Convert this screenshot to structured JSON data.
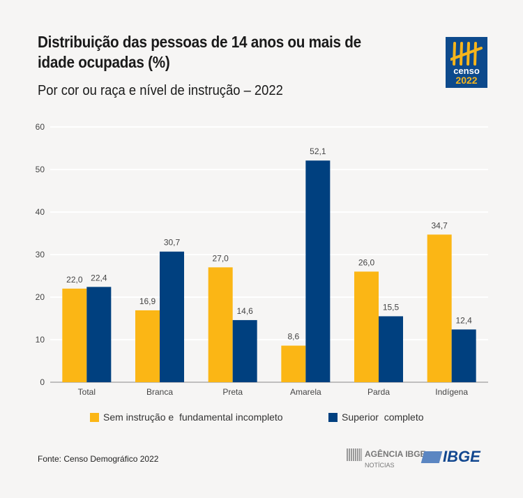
{
  "header": {
    "title": "Distribuição das pessoas de 14 anos ou mais de idade ocupadas (%)",
    "subtitle": "Por cor ou raça e nível de instrução – 2022"
  },
  "logo": {
    "word": "censo",
    "year": "2022"
  },
  "footer": {
    "source": "Fonte: Censo Demográfico 2022",
    "agencia": "AGÊNCIA IBGE",
    "noticias": "NOTÍCIAS",
    "ibge": "IBGE"
  },
  "colors": {
    "yellow": "#fbb615",
    "blue": "#00407f"
  },
  "chart_data": {
    "type": "bar",
    "title": "Distribuição das pessoas de 14 anos ou mais de idade ocupadas (%)",
    "xlabel": "",
    "ylabel": "",
    "ylim": [
      0,
      60
    ],
    "yticks": [
      0,
      10,
      20,
      30,
      40,
      50,
      60
    ],
    "grid": true,
    "legend_position": "bottom",
    "categories": [
      "Total",
      "Branca",
      "Preta",
      "Amarela",
      "Parda",
      "Indígena"
    ],
    "series": [
      {
        "name": "Sem instrução e  fundamental incompleto",
        "values": [
          22.0,
          16.9,
          27.0,
          8.6,
          26.0,
          34.7
        ],
        "labels": [
          "22,0",
          "16,9",
          "27,0",
          "8,6",
          "26,0",
          "34,7"
        ]
      },
      {
        "name": "Superior  completo",
        "values": [
          22.4,
          30.7,
          14.6,
          52.1,
          15.5,
          12.4
        ],
        "labels": [
          "22,4",
          "30,7",
          "14,6",
          "52,1",
          "15,5",
          "12,4"
        ]
      }
    ]
  }
}
